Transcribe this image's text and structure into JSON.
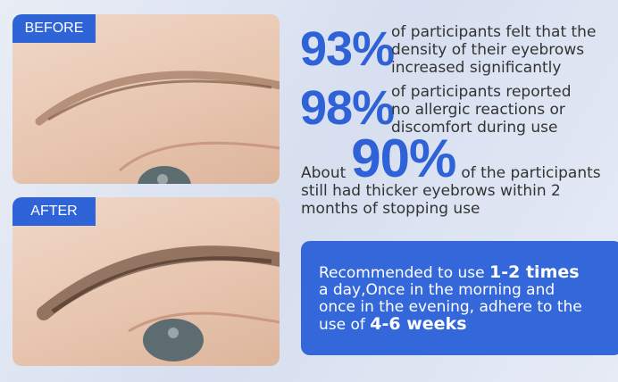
{
  "before_label": "BEFORE",
  "after_label": "AFTER",
  "stats": [
    {
      "value": "93%",
      "text": [
        "of participants felt that the",
        "density of their eyebrows",
        "increased significantly"
      ]
    },
    {
      "value": "98%",
      "text": [
        "of participants reported",
        "no allergic reactions or",
        "discomfort during use"
      ]
    },
    {
      "prefix": "About",
      "value": "90%",
      "text": [
        "of the participants",
        "still had thicker eyebrows within 2",
        "months of stopping use"
      ]
    }
  ],
  "recommendation": {
    "t1": "Recommended to use ",
    "b1": "1-2 times",
    "t2": "a day,Once in the morning and",
    "t3": "once in the evening, adhere to the",
    "t4": "use of ",
    "b2": "4-6 weeks"
  },
  "colors": {
    "accent": "#2f64d8",
    "box": "#3467d9"
  }
}
